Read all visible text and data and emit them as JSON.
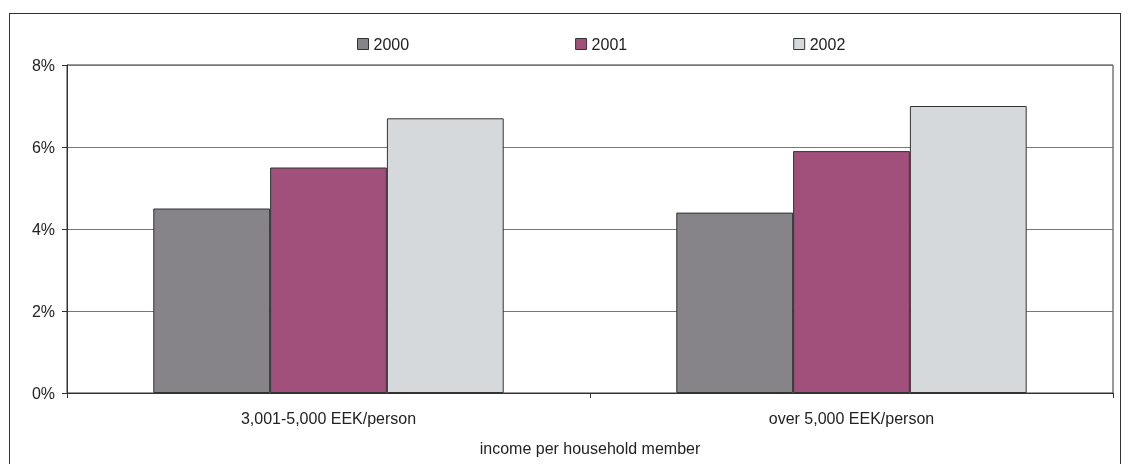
{
  "chart_data": {
    "type": "bar",
    "xlabel": "income per household member",
    "categories": [
      "3,001-5,000 EEK/person",
      "over 5,000 EEK/person"
    ],
    "series": [
      {
        "name": "2000",
        "color": "#868389",
        "values": [
          4.5,
          4.4
        ]
      },
      {
        "name": "2001",
        "color": "#a0507a",
        "values": [
          5.5,
          5.9
        ]
      },
      {
        "name": "2002",
        "color": "#d6d9dc",
        "values": [
          6.7,
          7.0
        ]
      }
    ],
    "ylim": [
      0,
      8
    ],
    "yticks": [
      {
        "value": 0,
        "label": "0%"
      },
      {
        "value": 2,
        "label": "2%"
      },
      {
        "value": 4,
        "label": "4%"
      },
      {
        "value": 6,
        "label": "6%"
      },
      {
        "value": 8,
        "label": "8%"
      }
    ],
    "grid": "y",
    "legend": "top"
  }
}
